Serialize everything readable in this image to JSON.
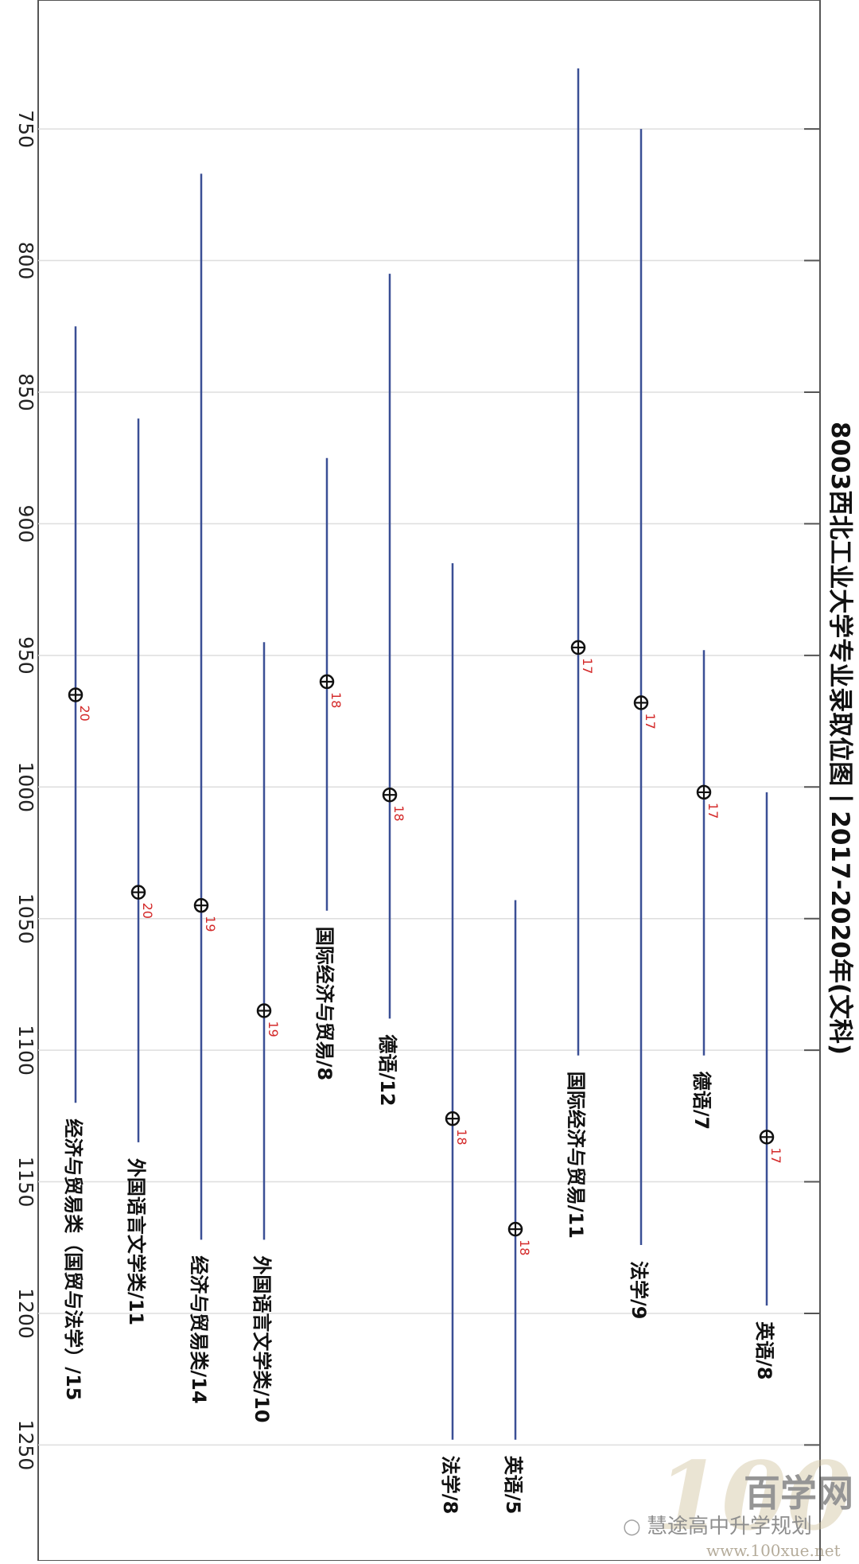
{
  "chart_data": {
    "type": "range",
    "orientation": "rotated-90-clockwise",
    "title": "8003西北工业大学专业录取位图丨2017-2020年(文科)",
    "value_axis": {
      "ticks": [
        750,
        800,
        850,
        900,
        950,
        1000,
        1050,
        1100,
        1150,
        1200,
        1250
      ],
      "range": [
        701,
        1294
      ],
      "grid": true
    },
    "series": [
      {
        "label": "经济与贸易类（国贸与法学）/15",
        "min": 825,
        "max": 1120,
        "marker": 965,
        "count": "20"
      },
      {
        "label": "外国语言文学类/11",
        "min": 860,
        "max": 1135,
        "marker": 1040,
        "count": "20"
      },
      {
        "label": "经济与贸易类/14",
        "min": 767,
        "max": 1172,
        "marker": 1045,
        "count": "19"
      },
      {
        "label": "外国语言文学类/10",
        "min": 945,
        "max": 1172,
        "marker": 1085,
        "count": "19"
      },
      {
        "label": "国际经济与贸易/8",
        "min": 875,
        "max": 1047,
        "marker": 960,
        "count": "18"
      },
      {
        "label": "德语/12",
        "min": 805,
        "max": 1088,
        "marker": 1003,
        "count": "18"
      },
      {
        "label": "法学/8",
        "min": 915,
        "max": 1248,
        "marker": 1126,
        "count": "18"
      },
      {
        "label": "英语/5",
        "min": 1043,
        "max": 1248,
        "marker": 1168,
        "count": "18"
      },
      {
        "label": "国际经济与贸易/11",
        "min": 727,
        "max": 1102,
        "marker": 947,
        "count": "17"
      },
      {
        "label": "法学/9",
        "min": 750,
        "max": 1174,
        "marker": 968,
        "count": "17"
      },
      {
        "label": "德语/7",
        "min": 948,
        "max": 1102,
        "marker": 1002,
        "count": "17"
      },
      {
        "label": "英语/8",
        "min": 1002,
        "max": 1197,
        "marker": 1133,
        "count": "17"
      }
    ],
    "colors": {
      "range_line": "#3a4f95",
      "marker": "#111111",
      "count_label": "#d42a2a",
      "grid": "#dedede",
      "frame": "#555555"
    }
  },
  "watermark": {
    "logo_number": "100",
    "brand": "百学网",
    "account": "慧途高中升学规划",
    "url": "www.100xue.net"
  }
}
